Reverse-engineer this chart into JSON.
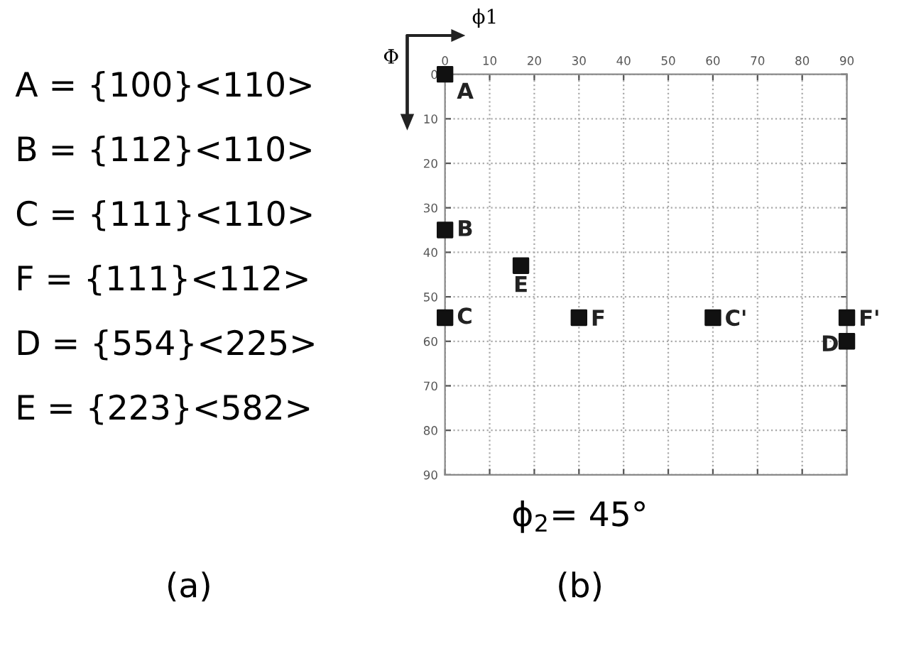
{
  "chart_data": [
    {
      "type": "other",
      "annotations": [
        "A = {100}<110>",
        "B = {112}<110>",
        "C = {111}<110>",
        "F = {111}<112>",
        "D = {554}<225>",
        "E = {223}<582>",
        "(a)"
      ]
    },
    {
      "type": "scatter",
      "xlabel": "ϕ1",
      "ylabel": "Φ",
      "subtitle": "ϕ$_{2}$= 45°",
      "x": [
        0,
        0,
        0,
        17,
        30,
        60,
        90,
        90
      ],
      "values": [
        0,
        35,
        54.7,
        43,
        54.7,
        54.7,
        54.7,
        60
      ],
      "color": "#111111",
      "marker": "square",
      "grid": true,
      "xlim": [
        0,
        90
      ],
      "xticks": [
        0,
        10,
        20,
        30,
        40,
        50,
        60,
        70,
        80,
        90
      ],
      "ylim": [
        90,
        0
      ],
      "yticks": [
        0,
        10,
        20,
        30,
        40,
        50,
        60,
        70,
        80,
        90
      ],
      "annotations": [
        {
          "text": "A",
          "x": 0,
          "y": 0
        },
        {
          "text": "B",
          "x": 0,
          "y": 35
        },
        {
          "text": "C",
          "x": 0,
          "y": 54.7
        },
        {
          "text": "E",
          "x": 17,
          "y": 43
        },
        {
          "text": "F",
          "x": 30,
          "y": 54.7
        },
        {
          "text": "C'",
          "x": 60,
          "y": 54.7
        },
        {
          "text": "F'",
          "x": 90,
          "y": 54.7
        },
        {
          "text": "D",
          "x": 90,
          "y": 60
        },
        "(b)"
      ]
    }
  ]
}
